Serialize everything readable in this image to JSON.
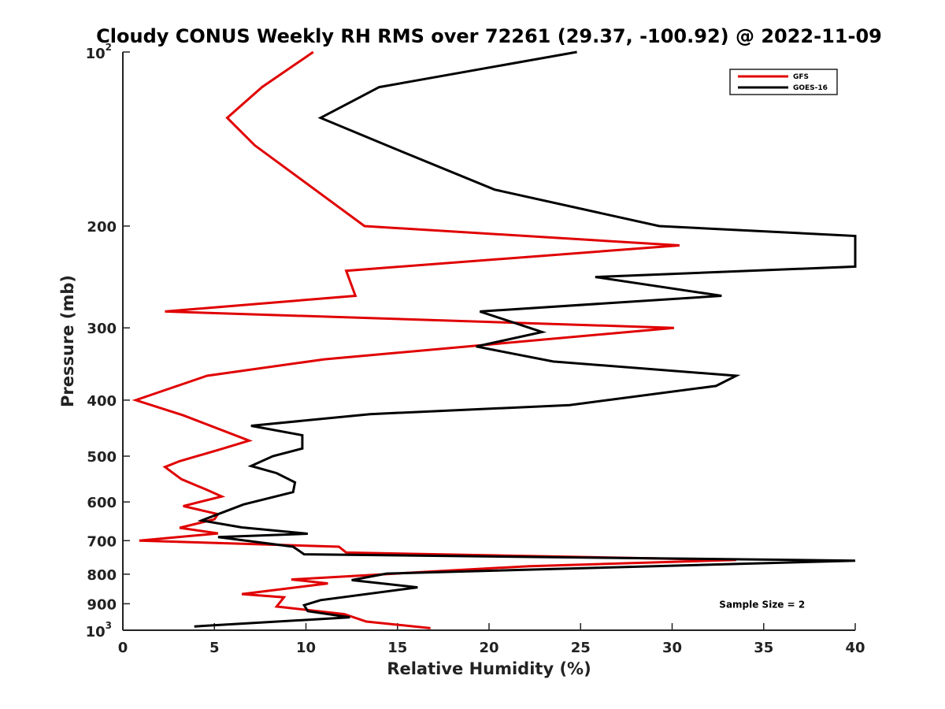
{
  "chart_data": {
    "type": "line",
    "title": "Cloudy CONUS Weekly RH RMS over 72261 (29.37, -100.92) @ 2022-11-09",
    "xlabel": "Relative Humidity (%)",
    "ylabel": "Pressure (mb)",
    "xlim": [
      0,
      40
    ],
    "ylim": [
      100,
      1000
    ],
    "y_scale": "log",
    "y_reversed": true,
    "grid": false,
    "legend_position": "top-right",
    "x_ticks": [
      {
        "value": 0,
        "label": "0"
      },
      {
        "value": 5,
        "label": "5"
      },
      {
        "value": 10,
        "label": "10"
      },
      {
        "value": 15,
        "label": "15"
      },
      {
        "value": 20,
        "label": "20"
      },
      {
        "value": 25,
        "label": "25"
      },
      {
        "value": 30,
        "label": "30"
      },
      {
        "value": 35,
        "label": "35"
      },
      {
        "value": 40,
        "label": "40"
      }
    ],
    "y_ticks": [
      {
        "value": 100,
        "base": "10",
        "exp": "2"
      },
      {
        "value": 200,
        "label": "200"
      },
      {
        "value": 300,
        "label": "300"
      },
      {
        "value": 400,
        "label": "400"
      },
      {
        "value": 500,
        "label": "500"
      },
      {
        "value": 600,
        "label": "600"
      },
      {
        "value": 700,
        "label": "700"
      },
      {
        "value": 800,
        "label": "800"
      },
      {
        "value": 900,
        "label": "900"
      },
      {
        "value": 1000,
        "base": "10",
        "exp": "3"
      }
    ],
    "series": [
      {
        "name": "GFS",
        "color": "#e00000",
        "points": [
          [
            10.4,
            100
          ],
          [
            7.6,
            115
          ],
          [
            5.7,
            130
          ],
          [
            7.2,
            145
          ],
          [
            13.2,
            200
          ],
          [
            30.4,
            216
          ],
          [
            12.2,
            239
          ],
          [
            12.7,
            264
          ],
          [
            2.3,
            281
          ],
          [
            30.1,
            300
          ],
          [
            11.0,
            340
          ],
          [
            4.6,
            363
          ],
          [
            0.7,
            400
          ],
          [
            3.3,
            425
          ],
          [
            6.9,
            470
          ],
          [
            5.3,
            487
          ],
          [
            3.1,
            510
          ],
          [
            2.3,
            522
          ],
          [
            3.2,
            548
          ],
          [
            4.6,
            572
          ],
          [
            5.4,
            587
          ],
          [
            3.3,
            610
          ],
          [
            5.2,
            630
          ],
          [
            5.0,
            643
          ],
          [
            3.1,
            665
          ],
          [
            5.2,
            680
          ],
          [
            0.9,
            700
          ],
          [
            11.8,
            717
          ],
          [
            12.2,
            734
          ],
          [
            33.5,
            756
          ],
          [
            22.2,
            775
          ],
          [
            17.9,
            788
          ],
          [
            9.2,
            817
          ],
          [
            11.2,
            830
          ],
          [
            6.5,
            866
          ],
          [
            8.8,
            877
          ],
          [
            8.4,
            910
          ],
          [
            12.1,
            938
          ],
          [
            13.3,
            966
          ],
          [
            16.8,
            992
          ]
        ]
      },
      {
        "name": "GOES-16",
        "color": "#000000",
        "points": [
          [
            24.8,
            100
          ],
          [
            14.0,
            115
          ],
          [
            10.8,
            130
          ],
          [
            14.4,
            145
          ],
          [
            20.3,
            173
          ],
          [
            29.3,
            200
          ],
          [
            40.0,
            208
          ],
          [
            40.0,
            235
          ],
          [
            25.8,
            245
          ],
          [
            32.7,
            264
          ],
          [
            19.5,
            281
          ],
          [
            22.9,
            305
          ],
          [
            19.3,
            323
          ],
          [
            23.5,
            343
          ],
          [
            33.5,
            363
          ],
          [
            32.4,
            378
          ],
          [
            24.4,
            408
          ],
          [
            13.5,
            423
          ],
          [
            7.0,
            443
          ],
          [
            9.8,
            460
          ],
          [
            9.8,
            485
          ],
          [
            8.2,
            500
          ],
          [
            7.0,
            520
          ],
          [
            8.4,
            535
          ],
          [
            9.4,
            555
          ],
          [
            9.3,
            577
          ],
          [
            6.6,
            606
          ],
          [
            5.2,
            630
          ],
          [
            4.3,
            646
          ],
          [
            6.5,
            664
          ],
          [
            10.1,
            681
          ],
          [
            5.2,
            690
          ],
          [
            9.3,
            717
          ],
          [
            9.9,
            739
          ],
          [
            40.0,
            758
          ],
          [
            14.4,
            798
          ],
          [
            12.5,
            819
          ],
          [
            16.1,
            843
          ],
          [
            10.8,
            887
          ],
          [
            9.9,
            905
          ],
          [
            10.1,
            927
          ],
          [
            12.4,
            950
          ],
          [
            3.9,
            985
          ]
        ]
      }
    ],
    "annotations": [
      {
        "text": "Sample Size = 2",
        "x": 35,
        "y": 900
      }
    ]
  }
}
